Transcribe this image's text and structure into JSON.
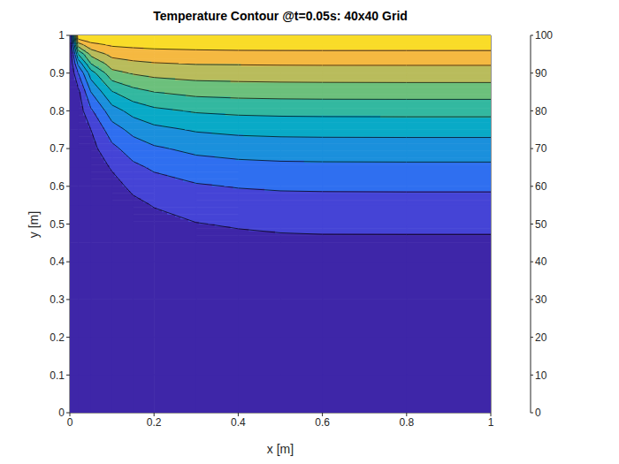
{
  "chart_data": {
    "type": "contour",
    "title": "Temperature Contour @t=0.05s: 40x40 Grid",
    "x_label": "x [m]",
    "y_label": "y [m]",
    "x": [
      0,
      0.02,
      0.05,
      0.1,
      0.15,
      0.2,
      0.3,
      0.4,
      0.5,
      0.6,
      0.8,
      1
    ],
    "y": [
      0,
      0.1,
      0.2,
      0.3,
      0.4,
      0.45,
      0.5,
      0.55,
      0.6,
      0.65,
      0.7,
      0.75,
      0.8,
      0.85,
      0.9,
      0.925,
      0.95,
      0.975,
      1
    ],
    "values": [
      [
        0,
        0,
        0,
        0,
        0,
        0,
        0,
        0,
        0,
        0,
        0,
        0
      ],
      [
        0,
        0,
        0,
        0,
        0,
        0,
        0,
        0,
        0,
        0,
        0,
        0
      ],
      [
        0,
        0,
        0,
        0,
        0.02,
        0.03,
        0.05,
        0.1,
        0.1,
        0.1,
        0.1,
        0.1
      ],
      [
        0,
        0,
        0.05,
        0.05,
        0.15,
        0.3,
        0.6,
        0.8,
        0.9,
        1,
        1,
        1
      ],
      [
        0,
        0.1,
        0.2,
        0.5,
        1,
        1.8,
        2.8,
        3.4,
        3.8,
        4,
        4,
        4
      ],
      [
        0,
        0.2,
        0.4,
        1.2,
        2.5,
        4,
        6,
        7,
        7.7,
        8,
        8,
        8
      ],
      [
        0,
        0.3,
        0.8,
        2.3,
        4.5,
        6.8,
        9.6,
        11,
        12,
        12.4,
        12.5,
        12.5
      ],
      [
        0,
        0.5,
        1.5,
        4,
        7.5,
        10.5,
        14.5,
        15.3,
        16.2,
        16.4,
        16.5,
        16.5
      ],
      [
        0,
        0.7,
        2.5,
        6.5,
        12.2,
        15.8,
        19,
        20.5,
        21.2,
        21.4,
        21.5,
        21.5
      ],
      [
        0,
        1,
        4,
        10.9,
        17.8,
        21.4,
        25.3,
        27,
        27.7,
        27.9,
        28,
        28
      ],
      [
        0,
        1.5,
        6.5,
        17.5,
        24.6,
        28.6,
        32.5,
        34,
        34.7,
        34.9,
        35,
        35
      ],
      [
        0,
        2.5,
        10,
        25.5,
        33,
        37.3,
        41,
        42.6,
        43.2,
        43.4,
        43.5,
        43.5
      ],
      [
        0,
        4.5,
        18.3,
        35.8,
        43.5,
        47.8,
        51,
        52.2,
        52.7,
        52.9,
        53,
        53
      ],
      [
        0,
        7.5,
        30,
        49.4,
        56.7,
        60,
        62.9,
        63.8,
        64.2,
        64.4,
        64.5,
        64.5
      ],
      [
        0,
        20,
        45,
        67,
        70.8,
        73,
        74.7,
        75,
        75.3,
        75.4,
        75.5,
        75.5
      ],
      [
        0,
        32.5,
        60,
        74.8,
        77.8,
        79.3,
        80.5,
        80.7,
        80.9,
        81,
        81,
        81
      ],
      [
        0,
        50,
        72.5,
        83,
        85,
        86,
        86.9,
        87.3,
        87.4,
        87.5,
        87.5,
        87.5
      ],
      [
        0,
        75,
        87,
        91.3,
        92.3,
        93,
        93.5,
        93.9,
        94,
        94,
        94,
        94
      ],
      [
        0,
        100,
        100,
        100,
        100,
        100,
        100,
        100,
        100,
        100,
        100,
        100
      ]
    ],
    "levels": [
      0,
      10,
      20,
      30,
      40,
      50,
      60,
      70,
      80,
      90,
      100
    ],
    "colors": [
      "#3e26a8",
      "#4544d6",
      "#2f6ff0",
      "#1b90dc",
      "#09aac7",
      "#33b8a0",
      "#6cc07c",
      "#b9bc5c",
      "#f5b941",
      "#f9dc28"
    ],
    "xlim": [
      0,
      1
    ],
    "ylim": [
      0,
      1
    ],
    "xticks": [
      0,
      0.2,
      0.4,
      0.6,
      0.8,
      1
    ],
    "yticks": [
      0,
      0.1,
      0.2,
      0.3,
      0.4,
      0.5,
      0.6,
      0.7,
      0.8,
      0.9,
      1
    ],
    "colorbar": {
      "range": [
        0,
        100
      ],
      "ticks": [
        0,
        10,
        20,
        30,
        40,
        50,
        60,
        70,
        80,
        90,
        100
      ]
    },
    "grid": false
  }
}
